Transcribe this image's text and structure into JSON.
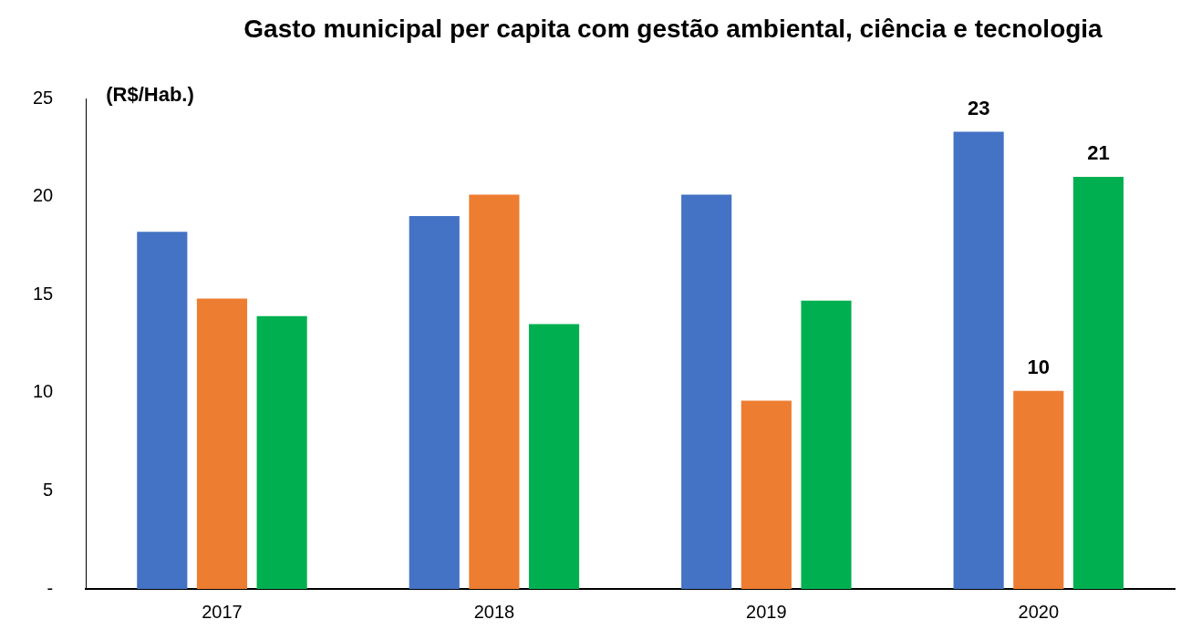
{
  "chart_data": {
    "type": "bar",
    "title": "Gasto municipal per capita com gestão ambiental, ciência e tecnologia",
    "ylabel": "(R$/Hab.)",
    "categories": [
      "2017",
      "2018",
      "2019",
      "2020"
    ],
    "series": [
      {
        "color": "#4472c4",
        "values": [
          18.2,
          19.0,
          20.1,
          23.3
        ],
        "value_labels": [
          null,
          null,
          null,
          "23"
        ]
      },
      {
        "color": "#ed7d31",
        "values": [
          14.8,
          20.1,
          9.6,
          10.1
        ],
        "value_labels": [
          null,
          null,
          null,
          "10"
        ]
      },
      {
        "color": "#00b050",
        "values": [
          13.9,
          13.5,
          14.7,
          21.0
        ],
        "value_labels": [
          null,
          null,
          null,
          "21"
        ]
      }
    ],
    "ylim": [
      0,
      25
    ],
    "yticks": [
      {
        "value": 0,
        "label": "-"
      },
      5,
      10,
      15,
      20,
      25
    ],
    "grid": false,
    "legend": false
  }
}
